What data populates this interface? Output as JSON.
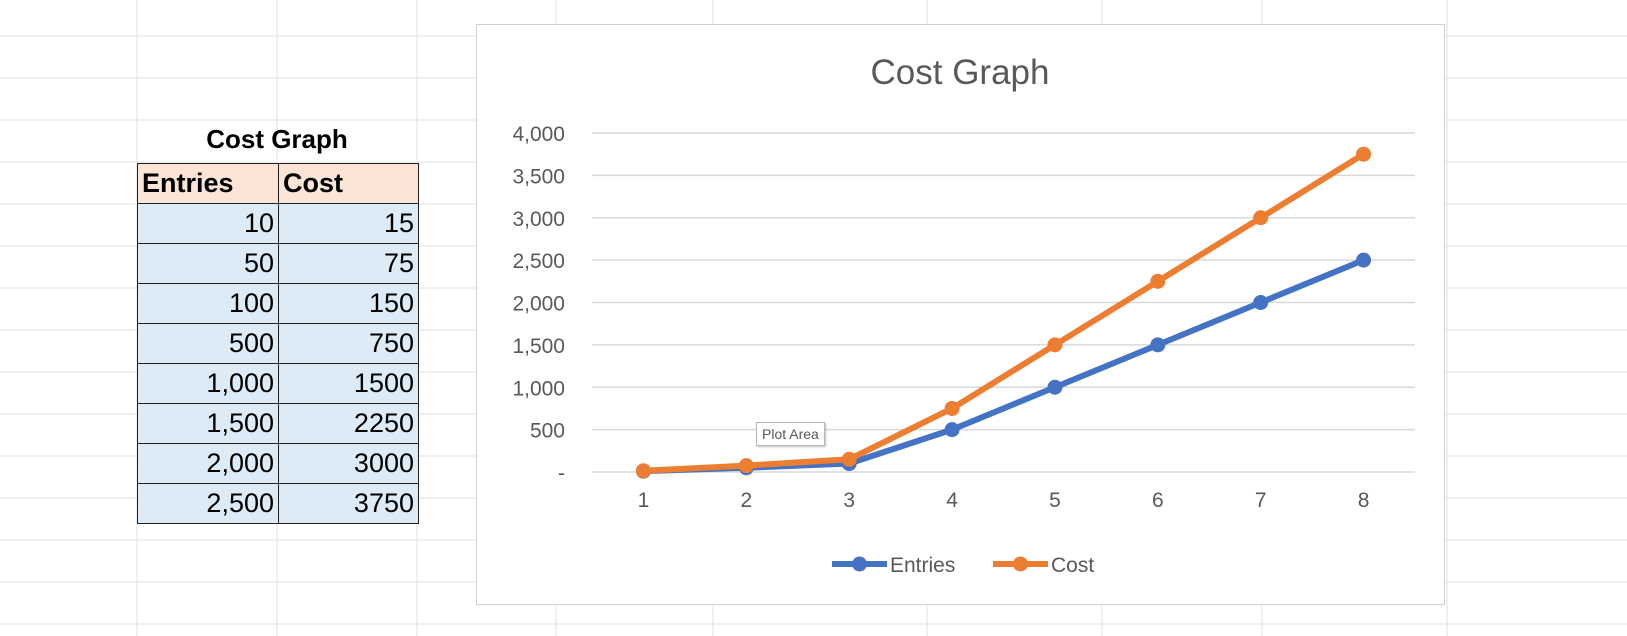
{
  "table": {
    "title": "Cost Graph",
    "headers": [
      "Entries",
      "Cost"
    ],
    "rows": [
      [
        "10",
        "15"
      ],
      [
        "50",
        "75"
      ],
      [
        "100",
        "150"
      ],
      [
        "500",
        "750"
      ],
      [
        "1,000",
        "1500"
      ],
      [
        "1,500",
        "2250"
      ],
      [
        "2,000",
        "3000"
      ],
      [
        "2,500",
        "3750"
      ]
    ]
  },
  "tooltip": {
    "label": "Plot Area"
  },
  "chart_data": {
    "type": "line",
    "title": "Cost Graph",
    "xlabel": "",
    "ylabel": "",
    "categories": [
      "1",
      "2",
      "3",
      "4",
      "5",
      "6",
      "7",
      "8"
    ],
    "series": [
      {
        "name": "Entries",
        "color": "#4472c4",
        "values": [
          10,
          50,
          100,
          500,
          1000,
          1500,
          2000,
          2500
        ]
      },
      {
        "name": "Cost",
        "color": "#ed7d31",
        "values": [
          15,
          75,
          150,
          750,
          1500,
          2250,
          3000,
          3750
        ]
      }
    ],
    "ylim": [
      0,
      4000
    ],
    "yticks": [
      0,
      500,
      1000,
      1500,
      2000,
      2500,
      3000,
      3500,
      4000
    ],
    "ytick_labels": [
      "-",
      "500",
      "1,000",
      "1,500",
      "2,000",
      "2,500",
      "3,000",
      "3,500",
      "4,000"
    ],
    "grid": true,
    "legend": "bottom",
    "markers": true
  }
}
